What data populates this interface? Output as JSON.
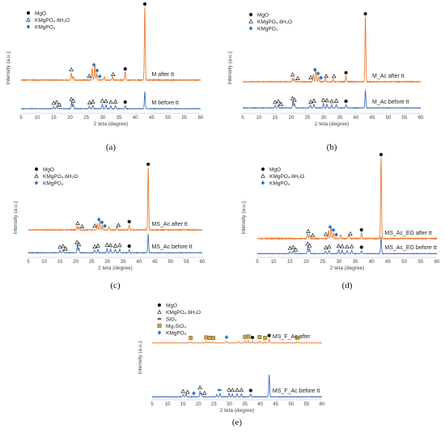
{
  "colors": {
    "before": "#4472C4",
    "after": "#ED7D31",
    "kmgpo4": "#2E75B6",
    "mg2sio4": "#C8A24C"
  },
  "legend": {
    "mgo": "MgO",
    "kmp": "KMgPO₄.6H₂O",
    "kmgpo4": "KMgPO₄",
    "sio2": "SiO₂",
    "mg2sio4": "Mg₂SiO₄"
  },
  "chart_data": [
    {
      "type": "line",
      "panel": "(a)",
      "xlabel": "2 teta (degree)",
      "ylabel": "Intensity (a.u.)",
      "xlim": [
        5,
        60
      ],
      "xticks": [
        5,
        10,
        15,
        20,
        25,
        30,
        35,
        40,
        45,
        50,
        55,
        60
      ],
      "legend_items": [
        "mgo",
        "kmp",
        "kmgpo4"
      ],
      "series": [
        {
          "name": "M after tt",
          "color": "after",
          "peaks": [
            [
              20.4,
              0.1
            ],
            [
              21.0,
              0.05
            ],
            [
              26.8,
              0.16
            ],
            [
              27.6,
              0.22
            ],
            [
              28.2,
              0.09
            ],
            [
              30.5,
              0.05
            ],
            [
              33.0,
              0.04
            ],
            [
              36.9,
              0.11
            ],
            [
              42.9,
              1.0
            ]
          ],
          "marks": [
            [
              20.4,
              "kmp"
            ],
            [
              25.9,
              "kmp"
            ],
            [
              27.3,
              "kmgpo4"
            ],
            [
              28.3,
              "kmgpo4"
            ],
            [
              29.1,
              "kmgpo4"
            ],
            [
              33.2,
              "kmp"
            ],
            [
              36.9,
              "mgo"
            ],
            [
              42.9,
              "mgo"
            ]
          ]
        },
        {
          "name": "M before tt",
          "color": "before",
          "peaks": [
            [
              15.0,
              0.05
            ],
            [
              16.0,
              0.07
            ],
            [
              20.5,
              0.14
            ],
            [
              21.0,
              0.1
            ],
            [
              25.9,
              0.06
            ],
            [
              27.0,
              0.08
            ],
            [
              29.9,
              0.1
            ],
            [
              31.0,
              0.09
            ],
            [
              32.5,
              0.07
            ],
            [
              33.9,
              0.08
            ],
            [
              36.9,
              0.07
            ],
            [
              42.9,
              0.38
            ]
          ],
          "marks": [
            [
              15.0,
              "kmp"
            ],
            [
              15.9,
              "kmp"
            ],
            [
              16.8,
              "kmp"
            ],
            [
              20.4,
              "kmp"
            ],
            [
              21.0,
              "kmp"
            ],
            [
              26.0,
              "kmp"
            ],
            [
              27.0,
              "kmp"
            ],
            [
              29.9,
              "kmp"
            ],
            [
              31.0,
              "kmp"
            ],
            [
              32.5,
              "kmp"
            ],
            [
              33.9,
              "kmp"
            ],
            [
              36.9,
              "mgo"
            ]
          ]
        }
      ]
    },
    {
      "type": "line",
      "panel": "(b)",
      "xlabel": "2 teta (degree)",
      "ylabel": "Intensity (a.u.)",
      "xlim": [
        5,
        60
      ],
      "xticks": [
        5,
        10,
        15,
        20,
        25,
        30,
        35,
        40,
        45,
        50,
        55,
        60
      ],
      "legend_items": [
        "mgo",
        "kmp",
        "kmgpo4"
      ],
      "series": [
        {
          "name": "M_Ac after tt",
          "color": "after",
          "peaks": [
            [
              20.4,
              0.06
            ],
            [
              21.0,
              0.04
            ],
            [
              26.8,
              0.12
            ],
            [
              27.6,
              0.18
            ],
            [
              28.4,
              0.08
            ],
            [
              30.5,
              0.05
            ],
            [
              33.0,
              0.04
            ],
            [
              36.9,
              0.09
            ],
            [
              42.9,
              1.0
            ]
          ],
          "marks": [
            [
              20.4,
              "kmp"
            ],
            [
              22.0,
              "kmp"
            ],
            [
              26.0,
              "kmp"
            ],
            [
              27.3,
              "kmgpo4"
            ],
            [
              28.3,
              "kmgpo4"
            ],
            [
              29.2,
              "kmgpo4"
            ],
            [
              30.8,
              "kmp"
            ],
            [
              33.2,
              "kmp"
            ],
            [
              36.9,
              "mgo"
            ],
            [
              42.9,
              "mgo"
            ]
          ]
        },
        {
          "name": "M_Ac before tt",
          "color": "before",
          "peaks": [
            [
              15.0,
              0.05
            ],
            [
              16.0,
              0.07
            ],
            [
              20.5,
              0.14
            ],
            [
              21.0,
              0.1
            ],
            [
              25.9,
              0.06
            ],
            [
              27.0,
              0.08
            ],
            [
              29.9,
              0.1
            ],
            [
              31.0,
              0.09
            ],
            [
              32.5,
              0.07
            ],
            [
              33.9,
              0.08
            ],
            [
              36.9,
              0.07
            ],
            [
              42.9,
              0.4
            ]
          ],
          "marks": [
            [
              15.0,
              "kmp"
            ],
            [
              16.0,
              "kmp"
            ],
            [
              16.8,
              "kmp"
            ],
            [
              20.4,
              "kmp"
            ],
            [
              21.0,
              "kmp"
            ],
            [
              26.0,
              "kmp"
            ],
            [
              27.0,
              "kmp"
            ],
            [
              29.9,
              "kmp"
            ],
            [
              31.0,
              "kmp"
            ],
            [
              32.5,
              "kmp"
            ],
            [
              33.9,
              "kmp"
            ],
            [
              36.9,
              "mgo"
            ]
          ]
        }
      ]
    },
    {
      "type": "line",
      "panel": "(c)",
      "xlabel": "2 teta (degree)",
      "ylabel": "Intensity (a.u.)",
      "xlim": [
        5,
        60
      ],
      "xticks": [
        5,
        10,
        15,
        20,
        25,
        30,
        35,
        40,
        45,
        50,
        55,
        60
      ],
      "legend_items": [
        "mgo",
        "kmp",
        "kmgpo4"
      ],
      "series": [
        {
          "name": "MS_Ac after tt",
          "color": "after",
          "peaks": [
            [
              20.4,
              0.06
            ],
            [
              21.0,
              0.05
            ],
            [
              26.8,
              0.1
            ],
            [
              27.6,
              0.15
            ],
            [
              28.4,
              0.07
            ],
            [
              30.5,
              0.05
            ],
            [
              33.0,
              0.05
            ],
            [
              36.9,
              0.08
            ],
            [
              42.9,
              1.0
            ]
          ],
          "marks": [
            [
              20.6,
              "kmp"
            ],
            [
              22.0,
              "kmp"
            ],
            [
              26.0,
              "kmp"
            ],
            [
              27.3,
              "kmgpo4"
            ],
            [
              28.3,
              "kmgpo4"
            ],
            [
              29.2,
              "kmgpo4"
            ],
            [
              33.5,
              "kmp"
            ],
            [
              36.9,
              "mgo"
            ],
            [
              42.9,
              "mgo"
            ]
          ]
        },
        {
          "name": "MS_Ac before tt",
          "color": "before",
          "peaks": [
            [
              15.0,
              0.05
            ],
            [
              16.0,
              0.07
            ],
            [
              20.5,
              0.16
            ],
            [
              21.0,
              0.11
            ],
            [
              25.9,
              0.06
            ],
            [
              27.0,
              0.08
            ],
            [
              29.9,
              0.1
            ],
            [
              31.0,
              0.09
            ],
            [
              32.5,
              0.08
            ],
            [
              33.9,
              0.09
            ],
            [
              36.9,
              0.07
            ],
            [
              42.9,
              0.42
            ]
          ],
          "marks": [
            [
              15.0,
              "kmp"
            ],
            [
              16.0,
              "kmp"
            ],
            [
              16.8,
              "kmp"
            ],
            [
              20.4,
              "kmp"
            ],
            [
              21.0,
              "kmp"
            ],
            [
              26.0,
              "kmp"
            ],
            [
              27.0,
              "kmp"
            ],
            [
              29.9,
              "kmp"
            ],
            [
              31.0,
              "kmp"
            ],
            [
              32.5,
              "kmp"
            ],
            [
              33.9,
              "kmp"
            ],
            [
              36.9,
              "mgo"
            ]
          ]
        }
      ]
    },
    {
      "type": "line",
      "panel": "(d)",
      "xlabel": "2 teta (degree)",
      "ylabel": "Intensity (a.u.)",
      "xlim": [
        5,
        60
      ],
      "xticks": [
        5,
        10,
        15,
        20,
        25,
        30,
        35,
        40,
        45,
        50,
        55,
        60
      ],
      "legend_items": [
        "mgo",
        "kmp",
        "kmgpo4"
      ],
      "series": [
        {
          "name": "MS_Ac_EG after tt",
          "color": "after",
          "peaks": [
            [
              20.4,
              0.06
            ],
            [
              21.0,
              0.05
            ],
            [
              26.8,
              0.1
            ],
            [
              27.6,
              0.14
            ],
            [
              28.4,
              0.07
            ],
            [
              30.5,
              0.05
            ],
            [
              33.0,
              0.05
            ],
            [
              36.9,
              0.07
            ],
            [
              42.9,
              1.0
            ]
          ],
          "marks": [
            [
              20.6,
              "kmp"
            ],
            [
              22.0,
              "kmp"
            ],
            [
              26.0,
              "kmp"
            ],
            [
              27.3,
              "kmgpo4"
            ],
            [
              28.3,
              "kmgpo4"
            ],
            [
              29.2,
              "kmgpo4"
            ],
            [
              33.5,
              "kmp"
            ],
            [
              36.9,
              "mgo"
            ],
            [
              42.9,
              "mgo"
            ]
          ]
        },
        {
          "name": "MS_Ac_EG before tt",
          "color": "before",
          "peaks": [
            [
              15.0,
              0.05
            ],
            [
              16.0,
              0.07
            ],
            [
              20.5,
              0.16
            ],
            [
              21.0,
              0.11
            ],
            [
              25.9,
              0.06
            ],
            [
              27.0,
              0.08
            ],
            [
              29.9,
              0.1
            ],
            [
              31.0,
              0.09
            ],
            [
              32.5,
              0.08
            ],
            [
              33.9,
              0.09
            ],
            [
              36.9,
              0.07
            ],
            [
              42.9,
              0.42
            ]
          ],
          "marks": [
            [
              15.0,
              "kmp"
            ],
            [
              16.0,
              "kmp"
            ],
            [
              16.8,
              "kmp"
            ],
            [
              20.4,
              "kmp"
            ],
            [
              21.0,
              "kmp"
            ],
            [
              26.0,
              "kmp"
            ],
            [
              27.0,
              "kmp"
            ],
            [
              29.9,
              "kmp"
            ],
            [
              31.0,
              "kmp"
            ],
            [
              32.5,
              "kmp"
            ],
            [
              33.9,
              "kmp"
            ],
            [
              36.9,
              "mgo"
            ]
          ]
        }
      ]
    },
    {
      "type": "line",
      "panel": "(e)",
      "xlabel": "2 teta (degree)",
      "ylabel": "Intensity (a.u.)",
      "xlim": [
        5,
        60
      ],
      "xticks": [
        5,
        10,
        15,
        20,
        25,
        30,
        35,
        40,
        45,
        50,
        55,
        60
      ],
      "legend_items": [
        "mgo",
        "kmp",
        "sio2",
        "mg2sio4",
        "kmgpo4"
      ],
      "series": [
        {
          "name": "MS_F_Ac after",
          "color": "after",
          "peaks": [
            [
              17.5,
              0.07
            ],
            [
              22.5,
              0.1
            ],
            [
              23.5,
              0.08
            ],
            [
              24.7,
              0.07
            ],
            [
              29.0,
              0.12
            ],
            [
              33.0,
              0.09
            ],
            [
              35.0,
              0.14
            ],
            [
              36.1,
              0.16
            ],
            [
              37.5,
              0.1
            ],
            [
              39.8,
              0.12
            ],
            [
              41.5,
              0.08
            ],
            [
              42.9,
              0.22
            ],
            [
              52.0,
              0.08
            ]
          ],
          "marks": [
            [
              17.5,
              "mg2sio4"
            ],
            [
              22.5,
              "mg2sio4"
            ],
            [
              23.6,
              "mg2sio4"
            ],
            [
              24.8,
              "mg2sio4"
            ],
            [
              29.1,
              "kmgpo4"
            ],
            [
              35.1,
              "mg2sio4"
            ],
            [
              36.2,
              "mg2sio4"
            ],
            [
              37.5,
              "mgo"
            ],
            [
              39.8,
              "mg2sio4"
            ],
            [
              41.6,
              "mg2sio4"
            ],
            [
              42.9,
              "mgo"
            ],
            [
              52.0,
              "mg2sio4"
            ]
          ]
        },
        {
          "name": "MS_F_Ac before tt",
          "color": "before",
          "peaks": [
            [
              15.0,
              0.05
            ],
            [
              16.0,
              0.07
            ],
            [
              20.5,
              0.14
            ],
            [
              21.0,
              0.1
            ],
            [
              25.9,
              0.06
            ],
            [
              27.0,
              0.09
            ],
            [
              29.9,
              0.09
            ],
            [
              31.0,
              0.08
            ],
            [
              32.5,
              0.08
            ],
            [
              33.9,
              0.08
            ],
            [
              36.9,
              0.07
            ],
            [
              42.9,
              0.55
            ]
          ],
          "marks": [
            [
              15.0,
              "kmp"
            ],
            [
              16.5,
              "kmp"
            ],
            [
              18.5,
              "kmgpo4"
            ],
            [
              20.5,
              "kmp"
            ],
            [
              22.0,
              "kmp"
            ],
            [
              26.8,
              "sio2"
            ],
            [
              29.9,
              "kmp"
            ],
            [
              31.0,
              "kmp"
            ],
            [
              32.5,
              "kmp"
            ],
            [
              33.9,
              "kmp"
            ],
            [
              36.9,
              "mgo"
            ]
          ]
        }
      ]
    }
  ]
}
